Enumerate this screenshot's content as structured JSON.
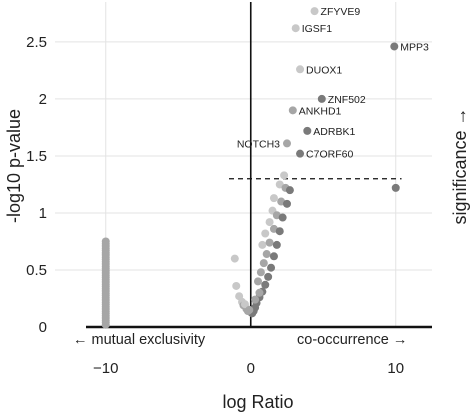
{
  "chart_data": {
    "type": "scatter",
    "xlabel": "log Ratio",
    "ylabel": "-log10 p-value",
    "right_label": "significance →",
    "annotation_left": "← mutual exclusivity",
    "annotation_right": "co-occurrence →",
    "xlim": [
      -13.5,
      12.5
    ],
    "ylim": [
      0,
      2.85
    ],
    "x_ticks": [
      {
        "value": -10,
        "label": "−10"
      },
      {
        "value": 0,
        "label": "0"
      },
      {
        "value": 10,
        "label": "10"
      }
    ],
    "y_ticks": [
      {
        "value": 0,
        "label": "0"
      },
      {
        "value": 0.5,
        "label": "0.5"
      },
      {
        "value": 1,
        "label": "1"
      },
      {
        "value": 1.5,
        "label": "1.5"
      },
      {
        "value": 2,
        "label": "2"
      },
      {
        "value": 2.5,
        "label": "2.5"
      }
    ],
    "grid": true,
    "threshold_y": 1.3,
    "colors": {
      "light_point": "#c8c8c8",
      "mid_point": "#a6a6a6",
      "dark_point": "#7a7a7a",
      "axis": "#111111",
      "grid": "#e3e3e3"
    },
    "labeled_points": [
      {
        "name": "ZFYVE9",
        "x": 4.4,
        "y": 2.77,
        "tone": "light"
      },
      {
        "name": "IGSF1",
        "x": 3.1,
        "y": 2.62,
        "tone": "light"
      },
      {
        "name": "MPP3",
        "x": 9.9,
        "y": 2.46,
        "tone": "dark"
      },
      {
        "name": "DUOX1",
        "x": 3.4,
        "y": 2.26,
        "tone": "light"
      },
      {
        "name": "ZNF502",
        "x": 4.9,
        "y": 2.0,
        "tone": "dark"
      },
      {
        "name": "ANKHD1",
        "x": 2.9,
        "y": 1.9,
        "tone": "mid"
      },
      {
        "name": "ADRBK1",
        "x": 3.9,
        "y": 1.72,
        "tone": "dark"
      },
      {
        "name": "NOTCH3",
        "x": 2.5,
        "y": 1.61,
        "tone": "mid"
      },
      {
        "name": "C7ORF60",
        "x": 3.4,
        "y": 1.52,
        "tone": "dark"
      }
    ],
    "points": [
      {
        "x": 10.0,
        "y": 1.22,
        "tone": "dark"
      },
      {
        "x": 2.3,
        "y": 1.33,
        "tone": "light"
      },
      {
        "x": 2.0,
        "y": 1.25,
        "tone": "light"
      },
      {
        "x": 1.6,
        "y": 1.13,
        "tone": "light"
      },
      {
        "x": 1.5,
        "y": 1.02,
        "tone": "light"
      },
      {
        "x": 1.3,
        "y": 0.92,
        "tone": "light"
      },
      {
        "x": 1.0,
        "y": 0.82,
        "tone": "light"
      },
      {
        "x": 0.8,
        "y": 0.72,
        "tone": "light"
      },
      {
        "x": 2.4,
        "y": 1.22,
        "tone": "mid"
      },
      {
        "x": 2.1,
        "y": 1.1,
        "tone": "mid"
      },
      {
        "x": 1.8,
        "y": 0.98,
        "tone": "mid"
      },
      {
        "x": 1.6,
        "y": 0.86,
        "tone": "mid"
      },
      {
        "x": 1.3,
        "y": 0.74,
        "tone": "mid"
      },
      {
        "x": 1.1,
        "y": 0.64,
        "tone": "mid"
      },
      {
        "x": 0.9,
        "y": 0.56,
        "tone": "mid"
      },
      {
        "x": 0.7,
        "y": 0.48,
        "tone": "mid"
      },
      {
        "x": 0.5,
        "y": 0.4,
        "tone": "mid"
      },
      {
        "x": 2.7,
        "y": 1.2,
        "tone": "dark"
      },
      {
        "x": 2.5,
        "y": 1.08,
        "tone": "dark"
      },
      {
        "x": 2.2,
        "y": 0.96,
        "tone": "dark"
      },
      {
        "x": 2.0,
        "y": 0.84,
        "tone": "dark"
      },
      {
        "x": 1.8,
        "y": 0.72,
        "tone": "dark"
      },
      {
        "x": 1.6,
        "y": 0.62,
        "tone": "dark"
      },
      {
        "x": 1.4,
        "y": 0.52,
        "tone": "dark"
      },
      {
        "x": 1.2,
        "y": 0.44,
        "tone": "dark"
      },
      {
        "x": 1.0,
        "y": 0.37,
        "tone": "dark"
      },
      {
        "x": 0.8,
        "y": 0.31,
        "tone": "dark"
      },
      {
        "x": 0.6,
        "y": 0.26,
        "tone": "dark"
      },
      {
        "x": 0.4,
        "y": 0.21,
        "tone": "dark"
      },
      {
        "x": 0.3,
        "y": 0.17,
        "tone": "dark"
      },
      {
        "x": 0.2,
        "y": 0.14,
        "tone": "dark"
      },
      {
        "x": 0.1,
        "y": 0.12,
        "tone": "dark"
      },
      {
        "x": 0.0,
        "y": 0.13,
        "tone": "dark"
      },
      {
        "x": 0.3,
        "y": 0.24,
        "tone": "mid"
      },
      {
        "x": 0.6,
        "y": 0.3,
        "tone": "mid"
      },
      {
        "x": -1.1,
        "y": 0.6,
        "tone": "light"
      },
      {
        "x": -1.0,
        "y": 0.36,
        "tone": "light"
      },
      {
        "x": -0.8,
        "y": 0.27,
        "tone": "light"
      },
      {
        "x": -0.6,
        "y": 0.22,
        "tone": "light"
      },
      {
        "x": -0.5,
        "y": 0.19,
        "tone": "mid"
      },
      {
        "x": -0.3,
        "y": 0.16,
        "tone": "mid"
      },
      {
        "x": -0.2,
        "y": 0.14,
        "tone": "mid"
      },
      {
        "x": -0.4,
        "y": 0.2,
        "tone": "light"
      },
      {
        "x": -0.1,
        "y": 0.15,
        "tone": "mid"
      }
    ],
    "stack": {
      "x": -10,
      "y_from": 0.02,
      "y_to": 0.75,
      "count": 38,
      "tone": "mid"
    }
  }
}
